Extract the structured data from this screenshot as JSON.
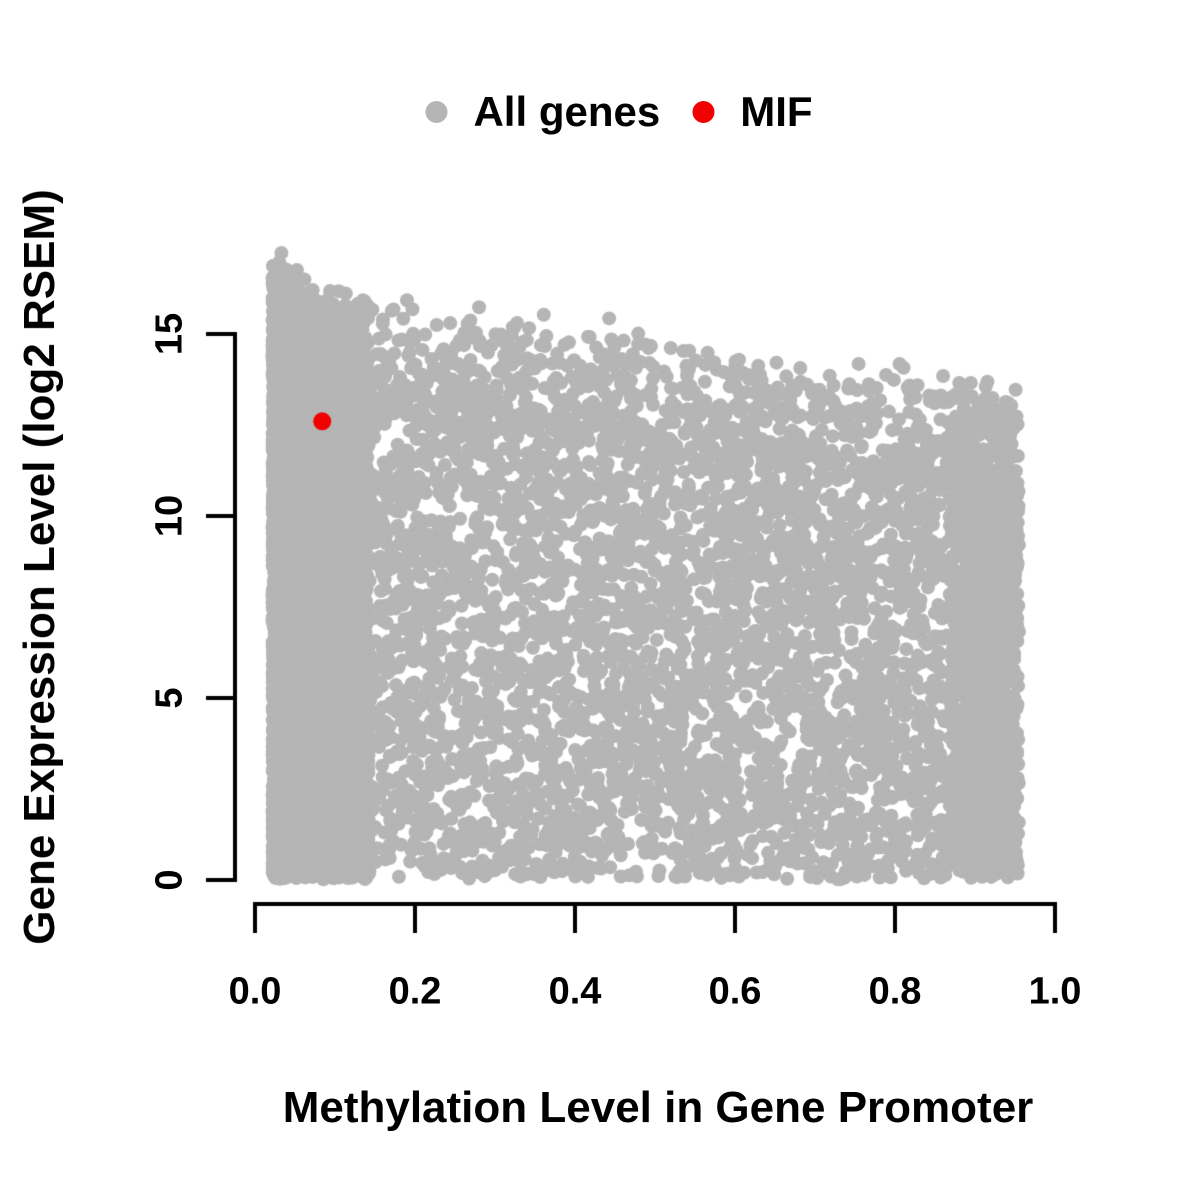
{
  "figure": {
    "background_color": "#ffffff",
    "axis_color": "#000000"
  },
  "chart_data": {
    "type": "scatter",
    "title": "",
    "xlabel": "Methylation Level in Gene Promoter",
    "ylabel": "Gene Expression Level (log2 RSEM)",
    "xlim": [
      0.0,
      1.0
    ],
    "ylim": [
      0,
      17.5
    ],
    "grid": false,
    "legend_position": "top-center",
    "xticks": [
      {
        "label": "0.0",
        "value": 0.0
      },
      {
        "label": "0.2",
        "value": 0.2
      },
      {
        "label": "0.4",
        "value": 0.4
      },
      {
        "label": "0.6",
        "value": 0.6
      },
      {
        "label": "0.8",
        "value": 0.8
      },
      {
        "label": "1.0",
        "value": 1.0
      }
    ],
    "yticks": [
      {
        "label": "0",
        "value": 0
      },
      {
        "label": "5",
        "value": 5
      },
      {
        "label": "10",
        "value": 10
      },
      {
        "label": "15",
        "value": 15
      }
    ],
    "series": [
      {
        "name": "All genes",
        "color": "#b5b5b5",
        "marker": "circle",
        "marker_radius_px": 7,
        "n_points_estimate": 11000,
        "distribution_summary": {
          "x_range": [
            0.02,
            0.955
          ],
          "y_range": [
            0,
            17.2
          ],
          "shape": "dense overplotted cloud; expression upper envelope declines from ~17 at methylation 0.03 to ~12 at methylation 0.95; very dense vertical strip below methylation 0.15; solid mass down to 0 across full methylation range",
          "seed": 42
        }
      },
      {
        "name": "MIF",
        "color": "#f10000",
        "marker": "circle",
        "marker_radius_px": 9,
        "points": [
          [
            0.084,
            12.6
          ]
        ]
      }
    ]
  }
}
